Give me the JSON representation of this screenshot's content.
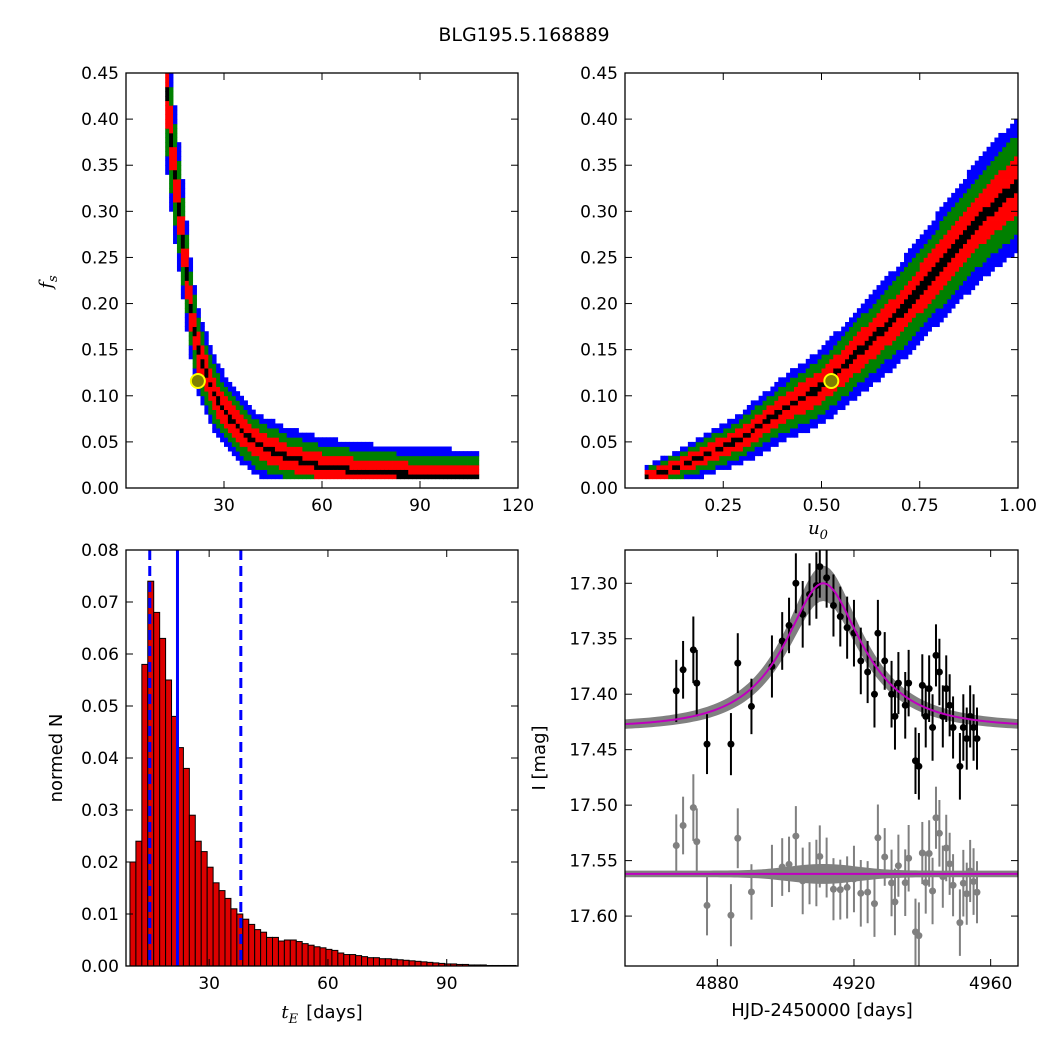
{
  "figure_title": "BLG195.5.168889",
  "colors": {
    "blue": "#0000ff",
    "green": "#008000",
    "red": "#ff0000",
    "black": "#000000",
    "gray": "#808080",
    "magenta": "#bf00bf",
    "marker_fill": "#808000",
    "marker_edge": "#ffff00",
    "bar_fill": "#dd0000"
  },
  "chart_data": [
    {
      "type": "heatmap",
      "panel": "top-left",
      "title": "",
      "xlabel": "",
      "ylabel": "f_s",
      "ylabel_main": "f",
      "ylabel_sub": "s",
      "xlim": [
        0,
        120
      ],
      "ylim": [
        0,
        0.45
      ],
      "xticks": [
        30,
        60,
        90,
        120
      ],
      "xtick_labels": [
        "30",
        "60",
        "90",
        "120"
      ],
      "yticks": [
        0,
        0.05,
        0.1,
        0.15,
        0.2,
        0.25,
        0.3,
        0.35,
        0.4,
        0.45
      ],
      "ytick_labels": [
        "0.00",
        "0.05",
        "0.10",
        "0.15",
        "0.20",
        "0.25",
        "0.30",
        "0.35",
        "0.40",
        "0.45"
      ],
      "description": "2D posterior density of t_E vs f_s, contours blue/green/red/black",
      "ridge": {
        "x": [
          12.5,
          14,
          16,
          18,
          20,
          22,
          25,
          28,
          32,
          36,
          40,
          45,
          50,
          55,
          60,
          70,
          80,
          90,
          100,
          106
        ],
        "y": [
          0.43,
          0.37,
          0.31,
          0.25,
          0.19,
          0.15,
          0.12,
          0.095,
          0.075,
          0.06,
          0.048,
          0.04,
          0.033,
          0.028,
          0.024,
          0.019,
          0.016,
          0.014,
          0.013,
          0.012
        ]
      },
      "best_fit": {
        "x": 22,
        "y": 0.116
      }
    },
    {
      "type": "heatmap",
      "panel": "top-right",
      "title": "",
      "xlabel": "u_0",
      "xlabel_main": "u",
      "xlabel_sub": "0",
      "ylabel": "",
      "xlim": [
        0,
        1.0
      ],
      "ylim": [
        0,
        0.45
      ],
      "xticks": [
        0.25,
        0.5,
        0.75,
        1.0
      ],
      "xtick_labels": [
        "0.25",
        "0.50",
        "0.75",
        "1.00"
      ],
      "yticks": [
        0,
        0.05,
        0.1,
        0.15,
        0.2,
        0.25,
        0.3,
        0.35,
        0.4,
        0.45
      ],
      "ytick_labels": [
        "0.00",
        "0.05",
        "0.10",
        "0.15",
        "0.20",
        "0.25",
        "0.30",
        "0.35",
        "0.40",
        "0.45"
      ],
      "description": "2D posterior density of u_0 vs f_s, contours blue/green/red/black",
      "ridge": {
        "x": [
          0.05,
          0.1,
          0.2,
          0.3,
          0.4,
          0.5,
          0.6,
          0.7,
          0.8,
          0.9,
          1.0
        ],
        "y": [
          0.012,
          0.018,
          0.035,
          0.055,
          0.085,
          0.11,
          0.15,
          0.19,
          0.24,
          0.29,
          0.33
        ]
      },
      "best_fit": {
        "x": 0.525,
        "y": 0.116
      }
    },
    {
      "type": "bar",
      "panel": "bottom-left",
      "title": "",
      "xlabel": "t_E [days]",
      "xlabel_main": "t",
      "xlabel_sub": "E",
      "xlabel_unit": "[days]",
      "ylabel": "normed N",
      "xlim": [
        9,
        108
      ],
      "ylim": [
        0,
        0.08
      ],
      "xticks": [
        30,
        60,
        90
      ],
      "xtick_labels": [
        "30",
        "60",
        "90"
      ],
      "yticks": [
        0,
        0.01,
        0.02,
        0.03,
        0.04,
        0.05,
        0.06,
        0.07,
        0.08
      ],
      "ytick_labels": [
        "0.00",
        "0.01",
        "0.02",
        "0.03",
        "0.04",
        "0.05",
        "0.06",
        "0.07",
        "0.08"
      ],
      "bin_start": 10,
      "bin_width": 1.5,
      "values": [
        0.02,
        0.024,
        0.058,
        0.074,
        0.068,
        0.063,
        0.055,
        0.048,
        0.042,
        0.038,
        0.029,
        0.024,
        0.022,
        0.019,
        0.016,
        0.0145,
        0.013,
        0.011,
        0.01,
        0.009,
        0.008,
        0.007,
        0.0065,
        0.0055,
        0.0055,
        0.0048,
        0.005,
        0.005,
        0.0047,
        0.0043,
        0.004,
        0.0037,
        0.0035,
        0.0032,
        0.003,
        0.0025,
        0.0022,
        0.0022,
        0.002,
        0.0018,
        0.0016,
        0.0016,
        0.0014,
        0.0014,
        0.0013,
        0.0012,
        0.0011,
        0.001,
        0.0009,
        0.0008,
        0.0007,
        0.0006,
        0.0005,
        0.0004,
        0.0004,
        0.0003,
        0.0003,
        0.0002,
        0.0002,
        0.0002,
        0.0001,
        0.0001,
        0.0001,
        0.0001,
        0.0001
      ],
      "median_line": 22,
      "percentile_lines": [
        15,
        38
      ]
    },
    {
      "type": "scatter",
      "panel": "bottom-right",
      "title": "",
      "xlabel": "HJD-2450000 [days]",
      "ylabel": "I [mag]",
      "xlim": [
        4853,
        4968
      ],
      "ylim": [
        17.645,
        17.27
      ],
      "y_inverted": true,
      "xticks": [
        4880,
        4920,
        4960
      ],
      "xtick_labels": [
        "4880",
        "4920",
        "4960"
      ],
      "yticks": [
        17.3,
        17.35,
        17.4,
        17.45,
        17.5,
        17.55,
        17.6
      ],
      "ytick_labels": [
        "17.30",
        "17.35",
        "17.40",
        "17.45",
        "17.50",
        "17.55",
        "17.60"
      ],
      "model": {
        "t0": 4911,
        "tE": 22,
        "u0": 0.525,
        "fs": 0.116,
        "baseline_mag": 17.43
      },
      "residual_baseline": 17.562,
      "points": [
        {
          "x": 4868,
          "y": 17.397,
          "err": 0.028
        },
        {
          "x": 4870,
          "y": 17.378,
          "err": 0.026
        },
        {
          "x": 4873,
          "y": 17.36,
          "err": 0.03
        },
        {
          "x": 4874,
          "y": 17.39,
          "err": 0.03
        },
        {
          "x": 4877,
          "y": 17.445,
          "err": 0.027
        },
        {
          "x": 4884,
          "y": 17.445,
          "err": 0.028
        },
        {
          "x": 4886,
          "y": 17.372,
          "err": 0.027
        },
        {
          "x": 4890,
          "y": 17.411,
          "err": 0.025
        },
        {
          "x": 4896,
          "y": 17.375,
          "err": 0.028
        },
        {
          "x": 4899,
          "y": 17.352,
          "err": 0.026
        },
        {
          "x": 4901,
          "y": 17.338,
          "err": 0.025
        },
        {
          "x": 4903,
          "y": 17.3,
          "err": 0.027
        },
        {
          "x": 4905,
          "y": 17.328,
          "err": 0.03
        },
        {
          "x": 4907,
          "y": 17.31,
          "err": 0.028
        },
        {
          "x": 4909,
          "y": 17.302,
          "err": 0.03
        },
        {
          "x": 4910,
          "y": 17.285,
          "err": 0.028
        },
        {
          "x": 4912,
          "y": 17.295,
          "err": 0.027
        },
        {
          "x": 4914,
          "y": 17.32,
          "err": 0.028
        },
        {
          "x": 4916,
          "y": 17.33,
          "err": 0.027
        },
        {
          "x": 4918,
          "y": 17.34,
          "err": 0.028
        },
        {
          "x": 4920,
          "y": 17.345,
          "err": 0.03
        },
        {
          "x": 4922,
          "y": 17.37,
          "err": 0.03
        },
        {
          "x": 4924,
          "y": 17.38,
          "err": 0.028
        },
        {
          "x": 4926,
          "y": 17.4,
          "err": 0.03
        },
        {
          "x": 4927,
          "y": 17.345,
          "err": 0.03
        },
        {
          "x": 4929,
          "y": 17.37,
          "err": 0.026
        },
        {
          "x": 4931,
          "y": 17.4,
          "err": 0.03
        },
        {
          "x": 4932,
          "y": 17.42,
          "err": 0.03
        },
        {
          "x": 4933,
          "y": 17.39,
          "err": 0.028
        },
        {
          "x": 4935,
          "y": 17.41,
          "err": 0.03
        },
        {
          "x": 4936,
          "y": 17.39,
          "err": 0.03
        },
        {
          "x": 4938,
          "y": 17.46,
          "err": 0.03
        },
        {
          "x": 4939,
          "y": 17.465,
          "err": 0.03
        },
        {
          "x": 4940,
          "y": 17.392,
          "err": 0.028
        },
        {
          "x": 4941,
          "y": 17.42,
          "err": 0.028
        },
        {
          "x": 4942,
          "y": 17.395,
          "err": 0.03
        },
        {
          "x": 4943,
          "y": 17.43,
          "err": 0.03
        },
        {
          "x": 4944,
          "y": 17.365,
          "err": 0.028
        },
        {
          "x": 4945,
          "y": 17.38,
          "err": 0.03
        },
        {
          "x": 4946,
          "y": 17.42,
          "err": 0.028
        },
        {
          "x": 4947,
          "y": 17.395,
          "err": 0.03
        },
        {
          "x": 4948,
          "y": 17.41,
          "err": 0.028
        },
        {
          "x": 4949,
          "y": 17.43,
          "err": 0.028
        },
        {
          "x": 4951,
          "y": 17.465,
          "err": 0.03
        },
        {
          "x": 4952,
          "y": 17.43,
          "err": 0.03
        },
        {
          "x": 4953,
          "y": 17.44,
          "err": 0.028
        },
        {
          "x": 4954,
          "y": 17.42,
          "err": 0.028
        },
        {
          "x": 4955,
          "y": 17.43,
          "err": 0.03
        },
        {
          "x": 4956,
          "y": 17.44,
          "err": 0.028
        }
      ]
    }
  ]
}
